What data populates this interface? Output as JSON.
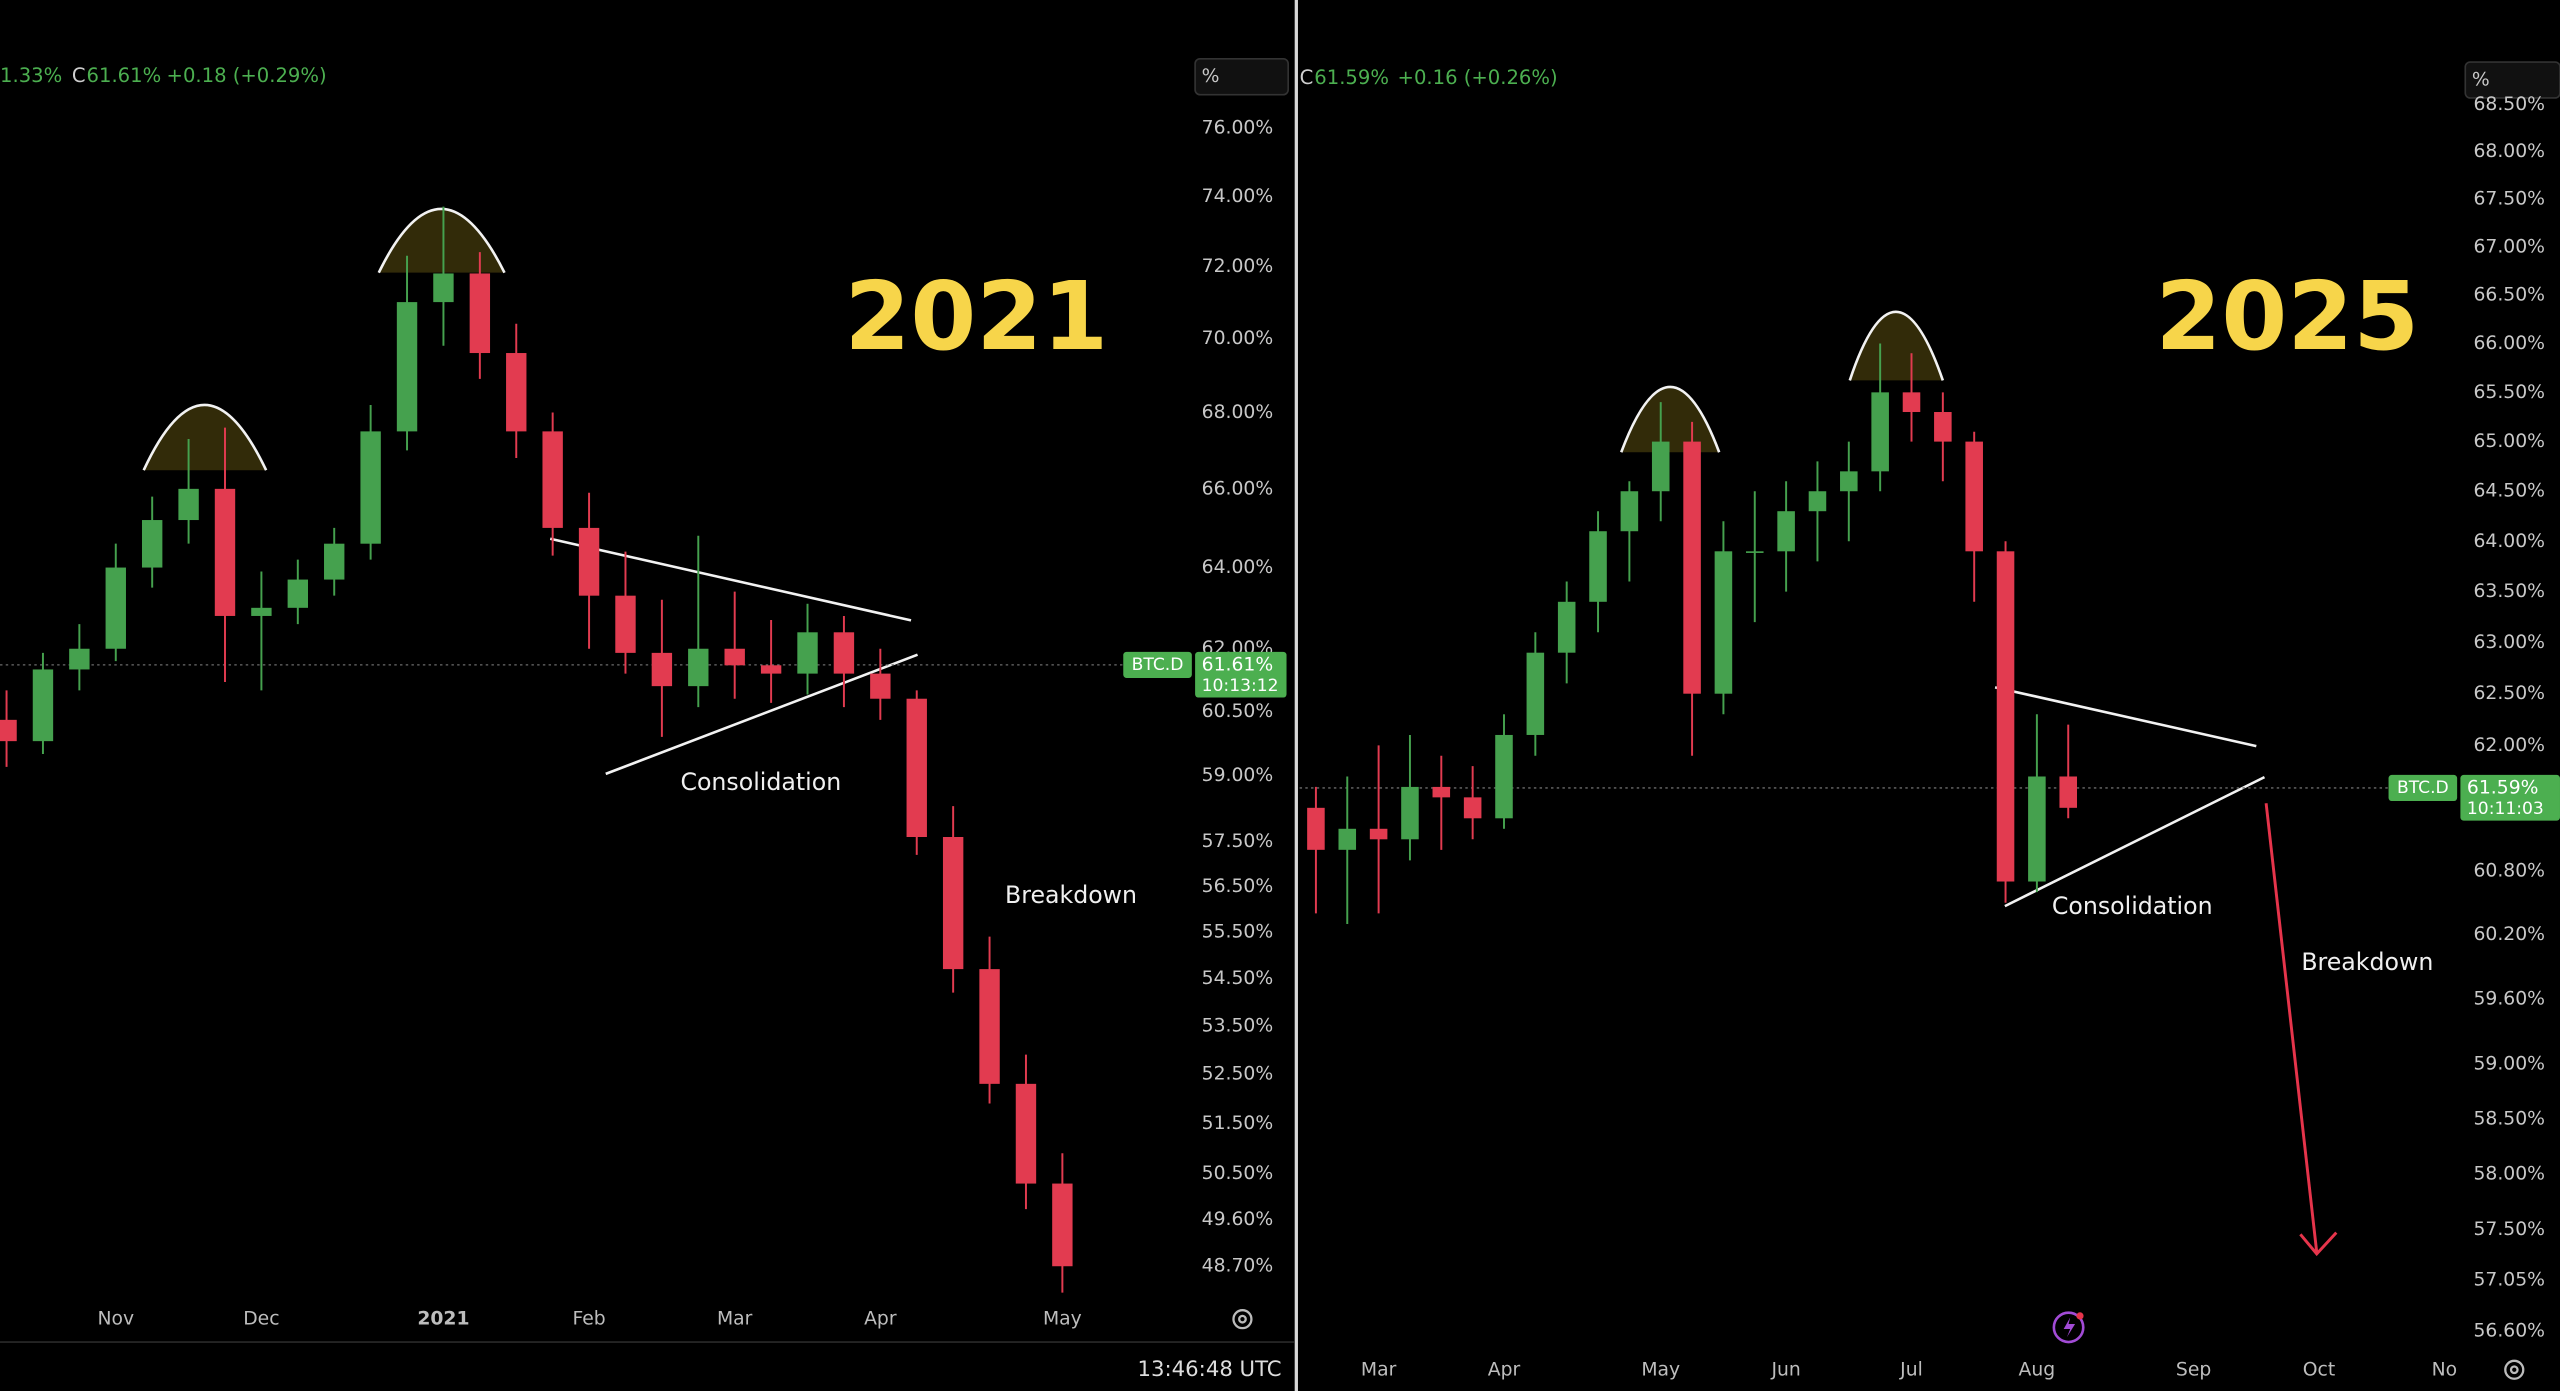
{
  "chart_data": [
    {
      "type": "candlestick",
      "title": "2021",
      "symbol": "BTC.D",
      "legend": {
        "low_value": "1.33%",
        "close_prefix": "C",
        "close": "61.61%",
        "change": "+0.18 (+0.29%)"
      },
      "last_price": {
        "value": 61.61,
        "label": "61.61%"
      },
      "countdown": "10:13:12",
      "annotations": {
        "pattern": "Consolidation",
        "signal": "Breakdown"
      },
      "log_scale": true,
      "up_color": "#45a14e",
      "down_color": "#e23b50",
      "categories": [
        null,
        null,
        null,
        "Nov",
        null,
        null,
        null,
        "Dec",
        null,
        null,
        null,
        null,
        "2021",
        null,
        null,
        null,
        "Feb",
        null,
        null,
        null,
        "Mar",
        null,
        null,
        null,
        "Apr",
        null,
        null,
        null,
        null,
        "May"
      ],
      "open": [
        60.3,
        59.8,
        61.5,
        62.0,
        64.0,
        65.2,
        66.0,
        62.8,
        63.0,
        63.7,
        64.6,
        67.5,
        71.0,
        71.8,
        69.6,
        67.5,
        65.0,
        63.3,
        61.9,
        61.1,
        62.0,
        61.6,
        61.4,
        62.4,
        61.4,
        60.8,
        57.6,
        54.7,
        52.3,
        50.3
      ],
      "high": [
        61.0,
        61.9,
        62.6,
        64.6,
        65.8,
        67.3,
        67.6,
        63.9,
        64.2,
        65.0,
        68.2,
        72.3,
        73.7,
        72.4,
        70.4,
        68.0,
        65.9,
        64.4,
        63.2,
        64.8,
        63.4,
        62.7,
        63.1,
        62.8,
        62.0,
        61.0,
        58.3,
        55.4,
        52.9,
        50.9
      ],
      "low": [
        59.2,
        59.5,
        61.0,
        61.7,
        63.5,
        64.6,
        61.2,
        61.0,
        62.6,
        63.3,
        64.2,
        67.0,
        69.8,
        68.9,
        66.8,
        64.3,
        62.0,
        61.4,
        59.9,
        60.6,
        60.8,
        60.7,
        60.9,
        60.6,
        60.3,
        57.2,
        54.2,
        51.9,
        49.8,
        48.2
      ],
      "close": [
        59.8,
        61.5,
        62.0,
        64.0,
        65.2,
        66.0,
        62.8,
        63.0,
        63.7,
        64.6,
        67.5,
        71.0,
        71.8,
        69.6,
        67.5,
        65.0,
        63.3,
        61.9,
        61.1,
        62.0,
        61.6,
        61.4,
        62.4,
        61.4,
        60.8,
        57.6,
        54.7,
        52.3,
        50.3,
        48.7
      ],
      "ylim": [
        48.1,
        76.9
      ],
      "yticks": [
        {
          "value": 76,
          "label": "76.00%"
        },
        {
          "value": 74,
          "label": "74.00%"
        },
        {
          "value": 72,
          "label": "72.00%"
        },
        {
          "value": 70,
          "label": "70.00%"
        },
        {
          "value": 68,
          "label": "68.00%"
        },
        {
          "value": 66,
          "label": "66.00%"
        },
        {
          "value": 64,
          "label": "64.00%"
        },
        {
          "value": 62,
          "label": "62.00%"
        },
        {
          "value": 60.5,
          "label": "60.50%"
        },
        {
          "value": 59,
          "label": "59.00%"
        },
        {
          "value": 57.5,
          "label": "57.50%"
        },
        {
          "value": 56.5,
          "label": "56.50%"
        },
        {
          "value": 55.5,
          "label": "55.50%"
        },
        {
          "value": 54.5,
          "label": "54.50%"
        },
        {
          "value": 53.5,
          "label": "53.50%"
        },
        {
          "value": 52.5,
          "label": "52.50%"
        },
        {
          "value": 51.5,
          "label": "51.50%"
        },
        {
          "value": 50.5,
          "label": "50.50%"
        },
        {
          "value": 49.6,
          "label": "49.60%"
        },
        {
          "value": 48.7,
          "label": "48.70%"
        }
      ]
    },
    {
      "type": "candlestick",
      "title": "2025",
      "symbol": "BTC.D",
      "legend": {
        "close_prefix": "C",
        "close": "61.59%",
        "change": "+0.16 (+0.26%)"
      },
      "last_price": {
        "value": 61.59,
        "label": "61.59%"
      },
      "countdown": "10:11:03",
      "annotations": {
        "pattern": "Consolidation",
        "signal": "Breakdown"
      },
      "log_scale": true,
      "up_color": "#45a14e",
      "down_color": "#e23b50",
      "categories": [
        null,
        null,
        "Mar",
        null,
        null,
        null,
        "Apr",
        null,
        null,
        null,
        null,
        "May",
        null,
        null,
        null,
        "Jun",
        null,
        null,
        null,
        "Jul",
        null,
        null,
        null,
        "Aug",
        null,
        null,
        null,
        null,
        "Sep",
        null,
        null,
        null,
        "Oct",
        null,
        null,
        null,
        "No"
      ],
      "open": [
        61.4,
        61.0,
        61.2,
        61.1,
        61.6,
        61.5,
        61.3,
        62.1,
        62.9,
        63.4,
        64.1,
        64.5,
        65.0,
        62.5,
        63.9,
        63.9,
        64.3,
        64.5,
        64.7,
        65.5,
        65.3,
        65.0,
        63.9,
        60.7,
        61.7,
        null,
        null,
        null,
        null,
        null,
        null,
        null,
        null,
        null,
        null,
        null,
        null
      ],
      "high": [
        61.6,
        61.7,
        62.0,
        62.1,
        61.9,
        61.8,
        62.3,
        63.1,
        63.6,
        64.3,
        64.6,
        65.4,
        65.2,
        64.2,
        64.5,
        64.6,
        64.8,
        65.0,
        66.0,
        65.9,
        65.5,
        65.1,
        64.0,
        62.3,
        62.2,
        null,
        null,
        null,
        null,
        null,
        null,
        null,
        null,
        null,
        null,
        null,
        null
      ],
      "low": [
        60.4,
        60.3,
        60.4,
        60.9,
        61.0,
        61.1,
        61.2,
        61.9,
        62.6,
        63.1,
        63.6,
        64.2,
        61.9,
        62.3,
        63.2,
        63.5,
        63.8,
        64.0,
        64.5,
        65.0,
        64.6,
        63.4,
        60.5,
        60.6,
        61.3,
        null,
        null,
        null,
        null,
        null,
        null,
        null,
        null,
        null,
        null,
        null,
        null
      ],
      "close": [
        61.0,
        61.2,
        61.1,
        61.6,
        61.5,
        61.3,
        62.1,
        62.9,
        63.4,
        64.1,
        64.5,
        65.0,
        62.5,
        63.9,
        63.9,
        64.3,
        64.5,
        64.7,
        65.5,
        65.3,
        65.0,
        63.9,
        60.7,
        61.7,
        61.4,
        null,
        null,
        null,
        null,
        null,
        null,
        null,
        null,
        null,
        null,
        null,
        null
      ],
      "ylim": [
        56.46,
        68.57
      ],
      "yticks": [
        {
          "value": 68.5,
          "label": "68.50%"
        },
        {
          "value": 68,
          "label": "68.00%"
        },
        {
          "value": 67.5,
          "label": "67.50%"
        },
        {
          "value": 67,
          "label": "67.00%"
        },
        {
          "value": 66.5,
          "label": "66.50%"
        },
        {
          "value": 66,
          "label": "66.00%"
        },
        {
          "value": 65.5,
          "label": "65.50%"
        },
        {
          "value": 65,
          "label": "65.00%"
        },
        {
          "value": 64.5,
          "label": "64.50%"
        },
        {
          "value": 64,
          "label": "64.00%"
        },
        {
          "value": 63.5,
          "label": "63.50%"
        },
        {
          "value": 63,
          "label": "63.00%"
        },
        {
          "value": 62.5,
          "label": "62.50%"
        },
        {
          "value": 62,
          "label": "62.00%"
        },
        {
          "value": 60.8,
          "label": "60.80%"
        },
        {
          "value": 60.2,
          "label": "60.20%"
        },
        {
          "value": 59.6,
          "label": "59.60%"
        },
        {
          "value": 59,
          "label": "59.00%"
        },
        {
          "value": 58.5,
          "label": "58.50%"
        },
        {
          "value": 58,
          "label": "58.00%"
        },
        {
          "value": 57.5,
          "label": "57.50%"
        },
        {
          "value": 57.05,
          "label": "57.05%"
        },
        {
          "value": 56.6,
          "label": "56.60%"
        }
      ]
    }
  ],
  "ui": {
    "scale_unit": "%",
    "time": "13:46:48 UTC"
  }
}
